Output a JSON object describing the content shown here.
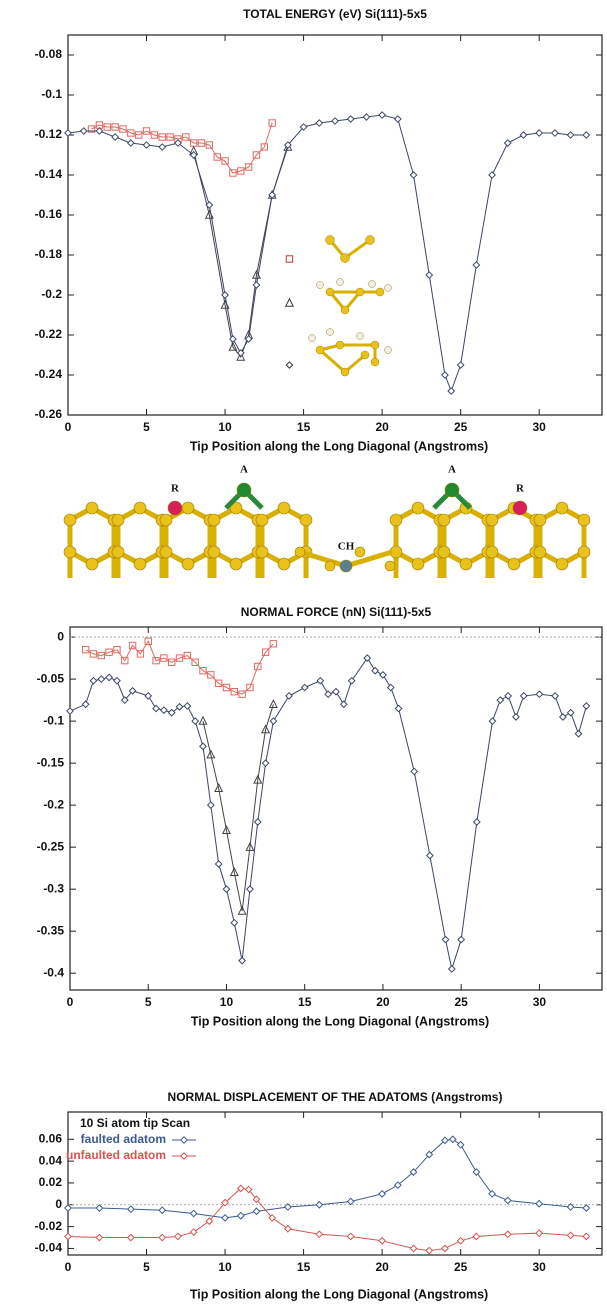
{
  "chart_data": [
    {
      "type": "line",
      "title": "TOTAL ENERGY (eV)  Si(111)-5x5",
      "x_label": "Tip Position along the Long Diagonal (Angstroms)",
      "xlim": [
        0,
        34
      ],
      "xticks": [
        0,
        5,
        10,
        15,
        20,
        25,
        30
      ],
      "ylim": [
        -0.26,
        -0.07
      ],
      "yticks": [
        -0.08,
        -0.1,
        -0.12,
        -0.14,
        -0.16,
        -0.18,
        -0.2,
        -0.22,
        -0.24,
        -0.26
      ],
      "series": [
        {
          "marker": "square",
          "color": "#e06a60",
          "x": [
            1.5,
            2,
            2.5,
            3,
            3.5,
            4,
            4.5,
            5,
            5.5,
            6,
            6.5,
            7,
            7.5,
            8,
            8.5,
            9,
            9.5,
            10,
            10.5,
            11,
            11.5,
            12,
            12.5,
            13
          ],
          "values": [
            -0.117,
            -0.115,
            -0.116,
            -0.116,
            -0.117,
            -0.119,
            -0.12,
            -0.118,
            -0.12,
            -0.121,
            -0.121,
            -0.122,
            -0.121,
            -0.124,
            -0.124,
            -0.125,
            -0.131,
            -0.133,
            -0.139,
            -0.138,
            -0.136,
            -0.13,
            -0.126,
            -0.114
          ]
        },
        {
          "marker": "triangle",
          "color": "#444444",
          "x": [
            8,
            9,
            10,
            10.5,
            11,
            11.5,
            12,
            13,
            14
          ],
          "values": [
            -0.128,
            -0.16,
            -0.205,
            -0.226,
            -0.231,
            -0.22,
            -0.19,
            -0.15,
            -0.126
          ]
        },
        {
          "marker": "diamond",
          "color": "#3a4766",
          "x": [
            0,
            1,
            2,
            3,
            4,
            5,
            6,
            7,
            8,
            9,
            10,
            10.5,
            11,
            11.5,
            12,
            13,
            14,
            15,
            16,
            17,
            18,
            19,
            20,
            21,
            22,
            23,
            24,
            24.4,
            25,
            26,
            27,
            28,
            29,
            30,
            31,
            32,
            33
          ],
          "values": [
            -0.119,
            -0.118,
            -0.118,
            -0.121,
            -0.124,
            -0.125,
            -0.126,
            -0.124,
            -0.13,
            -0.155,
            -0.2,
            -0.222,
            -0.229,
            -0.222,
            -0.195,
            -0.15,
            -0.125,
            -0.116,
            -0.114,
            -0.113,
            -0.112,
            -0.111,
            -0.11,
            -0.112,
            -0.14,
            -0.19,
            -0.24,
            -0.248,
            -0.235,
            -0.185,
            -0.14,
            -0.124,
            -0.12,
            -0.119,
            -0.119,
            -0.12,
            -0.12
          ]
        }
      ]
    },
    {
      "type": "line",
      "title": "NORMAL FORCE (nN)  Si(111)-5x5",
      "x_label": "Tip Position along the Long Diagonal (Angstroms)",
      "xlim": [
        0,
        34
      ],
      "xticks": [
        0,
        5,
        10,
        15,
        20,
        25,
        30
      ],
      "ylim": [
        -0.42,
        0.012
      ],
      "yticks": [
        0,
        -0.05,
        -0.1,
        -0.15,
        -0.2,
        -0.25,
        -0.3,
        -0.35,
        -0.4
      ],
      "zero_line": true,
      "series": [
        {
          "marker": "square",
          "color": "#e06a60",
          "x": [
            1,
            1.5,
            2,
            2.5,
            3,
            3.5,
            4,
            4.5,
            5,
            5.5,
            6,
            6.5,
            7,
            7.5,
            8,
            8.5,
            9,
            9.5,
            10,
            10.5,
            11,
            11.5,
            12,
            12.5,
            13
          ],
          "values": [
            -0.015,
            -0.02,
            -0.022,
            -0.018,
            -0.015,
            -0.028,
            -0.01,
            -0.02,
            -0.005,
            -0.028,
            -0.025,
            -0.03,
            -0.025,
            -0.022,
            -0.03,
            -0.04,
            -0.045,
            -0.055,
            -0.06,
            -0.065,
            -0.068,
            -0.06,
            -0.035,
            -0.018,
            -0.008
          ]
        },
        {
          "marker": "triangle",
          "color": "#444444",
          "x": [
            8.5,
            9,
            9.5,
            10,
            10.5,
            11,
            11.5,
            12,
            12.5,
            13
          ],
          "values": [
            -0.1,
            -0.14,
            -0.18,
            -0.23,
            -0.28,
            -0.326,
            -0.25,
            -0.17,
            -0.11,
            -0.08
          ]
        },
        {
          "marker": "diamond",
          "color": "#3a4766",
          "x": [
            0,
            1,
            1.5,
            2,
            2.5,
            3,
            3.5,
            4,
            5,
            5.5,
            6,
            6.5,
            7,
            7.5,
            8,
            8.5,
            9,
            9.5,
            10,
            10.5,
            11,
            11.5,
            12,
            12.5,
            13,
            14,
            15,
            16,
            16.5,
            17,
            17.5,
            18,
            19,
            19.5,
            20,
            20.5,
            21,
            22,
            23,
            24,
            24.4,
            25,
            26,
            27,
            27.5,
            28,
            28.5,
            29,
            30,
            31,
            31.5,
            32,
            32.5,
            33
          ],
          "values": [
            -0.088,
            -0.08,
            -0.052,
            -0.05,
            -0.048,
            -0.052,
            -0.075,
            -0.064,
            -0.07,
            -0.085,
            -0.087,
            -0.09,
            -0.083,
            -0.082,
            -0.1,
            -0.13,
            -0.2,
            -0.27,
            -0.3,
            -0.34,
            -0.385,
            -0.3,
            -0.22,
            -0.15,
            -0.1,
            -0.07,
            -0.06,
            -0.052,
            -0.068,
            -0.065,
            -0.08,
            -0.052,
            -0.025,
            -0.04,
            -0.045,
            -0.06,
            -0.085,
            -0.16,
            -0.26,
            -0.36,
            -0.395,
            -0.36,
            -0.22,
            -0.1,
            -0.075,
            -0.07,
            -0.095,
            -0.07,
            -0.068,
            -0.07,
            -0.095,
            -0.09,
            -0.115,
            -0.082
          ]
        }
      ]
    },
    {
      "type": "line",
      "title": "NORMAL DISPLACEMENT OF THE ADATOMS (Angstroms)",
      "x_label": "Tip Position along the Long Diagonal (Angstroms)",
      "xlim": [
        0,
        34
      ],
      "xticks": [
        0,
        5,
        10,
        15,
        20,
        25,
        30
      ],
      "ylim": [
        -0.046,
        0.085
      ],
      "yticks": [
        0.06,
        0.04,
        0.02,
        0,
        -0.02,
        -0.04
      ],
      "zero_line": true,
      "legend_title": "10 Si atom tip Scan",
      "legend": "upper left",
      "series": [
        {
          "name": "faulted adatom",
          "marker": "diamond",
          "color": "#3d5a8f",
          "x": [
            0,
            2,
            4,
            6,
            8,
            10,
            11,
            12,
            14,
            16,
            18,
            20,
            21,
            22,
            23,
            24,
            24.5,
            25,
            26,
            27,
            28,
            30,
            32,
            33
          ],
          "values": [
            -0.003,
            -0.003,
            -0.004,
            -0.005,
            -0.008,
            -0.012,
            -0.01,
            -0.006,
            -0.002,
            0,
            0.003,
            0.01,
            0.018,
            0.03,
            0.046,
            0.059,
            0.06,
            0.055,
            0.03,
            0.01,
            0.004,
            0.001,
            -0.002,
            -0.003
          ]
        },
        {
          "name": "unfaulted adatom",
          "marker": "diamond",
          "color": "#d9534f",
          "x": [
            0,
            2,
            4,
            6,
            7,
            8,
            9,
            10,
            11,
            11.5,
            12,
            13,
            14,
            16,
            18,
            20,
            22,
            23,
            24,
            25,
            26,
            28,
            30,
            32,
            33
          ],
          "values": [
            -0.029,
            -0.03,
            -0.03,
            -0.03,
            -0.029,
            -0.025,
            -0.015,
            0.002,
            0.015,
            0.014,
            0.005,
            -0.012,
            -0.022,
            -0.027,
            -0.029,
            -0.033,
            -0.04,
            -0.042,
            -0.04,
            -0.033,
            -0.029,
            -0.027,
            -0.026,
            -0.028,
            -0.029
          ]
        }
      ]
    }
  ],
  "structure_labels": [
    "R",
    "A",
    "CH",
    "A",
    "R"
  ]
}
